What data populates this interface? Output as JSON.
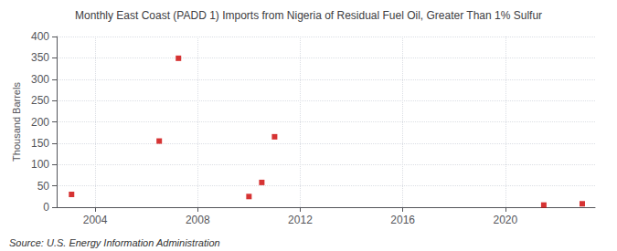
{
  "chart_data": {
    "type": "scatter",
    "title": "Monthly East Coast (PADD 1) Imports from Nigeria of Residual Fuel Oil, Greater Than 1% Sulfur",
    "ylabel": "Thousand Barrels",
    "annotations": [
      "Source: U.S. Energy Information Administration"
    ],
    "x": [
      2003.08,
      2006.5,
      2007.25,
      2010.0,
      2010.5,
      2011.0,
      2021.5,
      2023.0
    ],
    "values": [
      30,
      155,
      349,
      25,
      58,
      165,
      5,
      8
    ],
    "color": "#cc0000",
    "marker": "square",
    "xlim": [
      2002.5,
      2023.5
    ],
    "xticks": [
      2004,
      2008,
      2012,
      2016,
      2020
    ],
    "ylim": [
      0,
      400
    ],
    "yticks": [
      0,
      50,
      100,
      150,
      200,
      250,
      300,
      350,
      400
    ],
    "grid": true
  }
}
